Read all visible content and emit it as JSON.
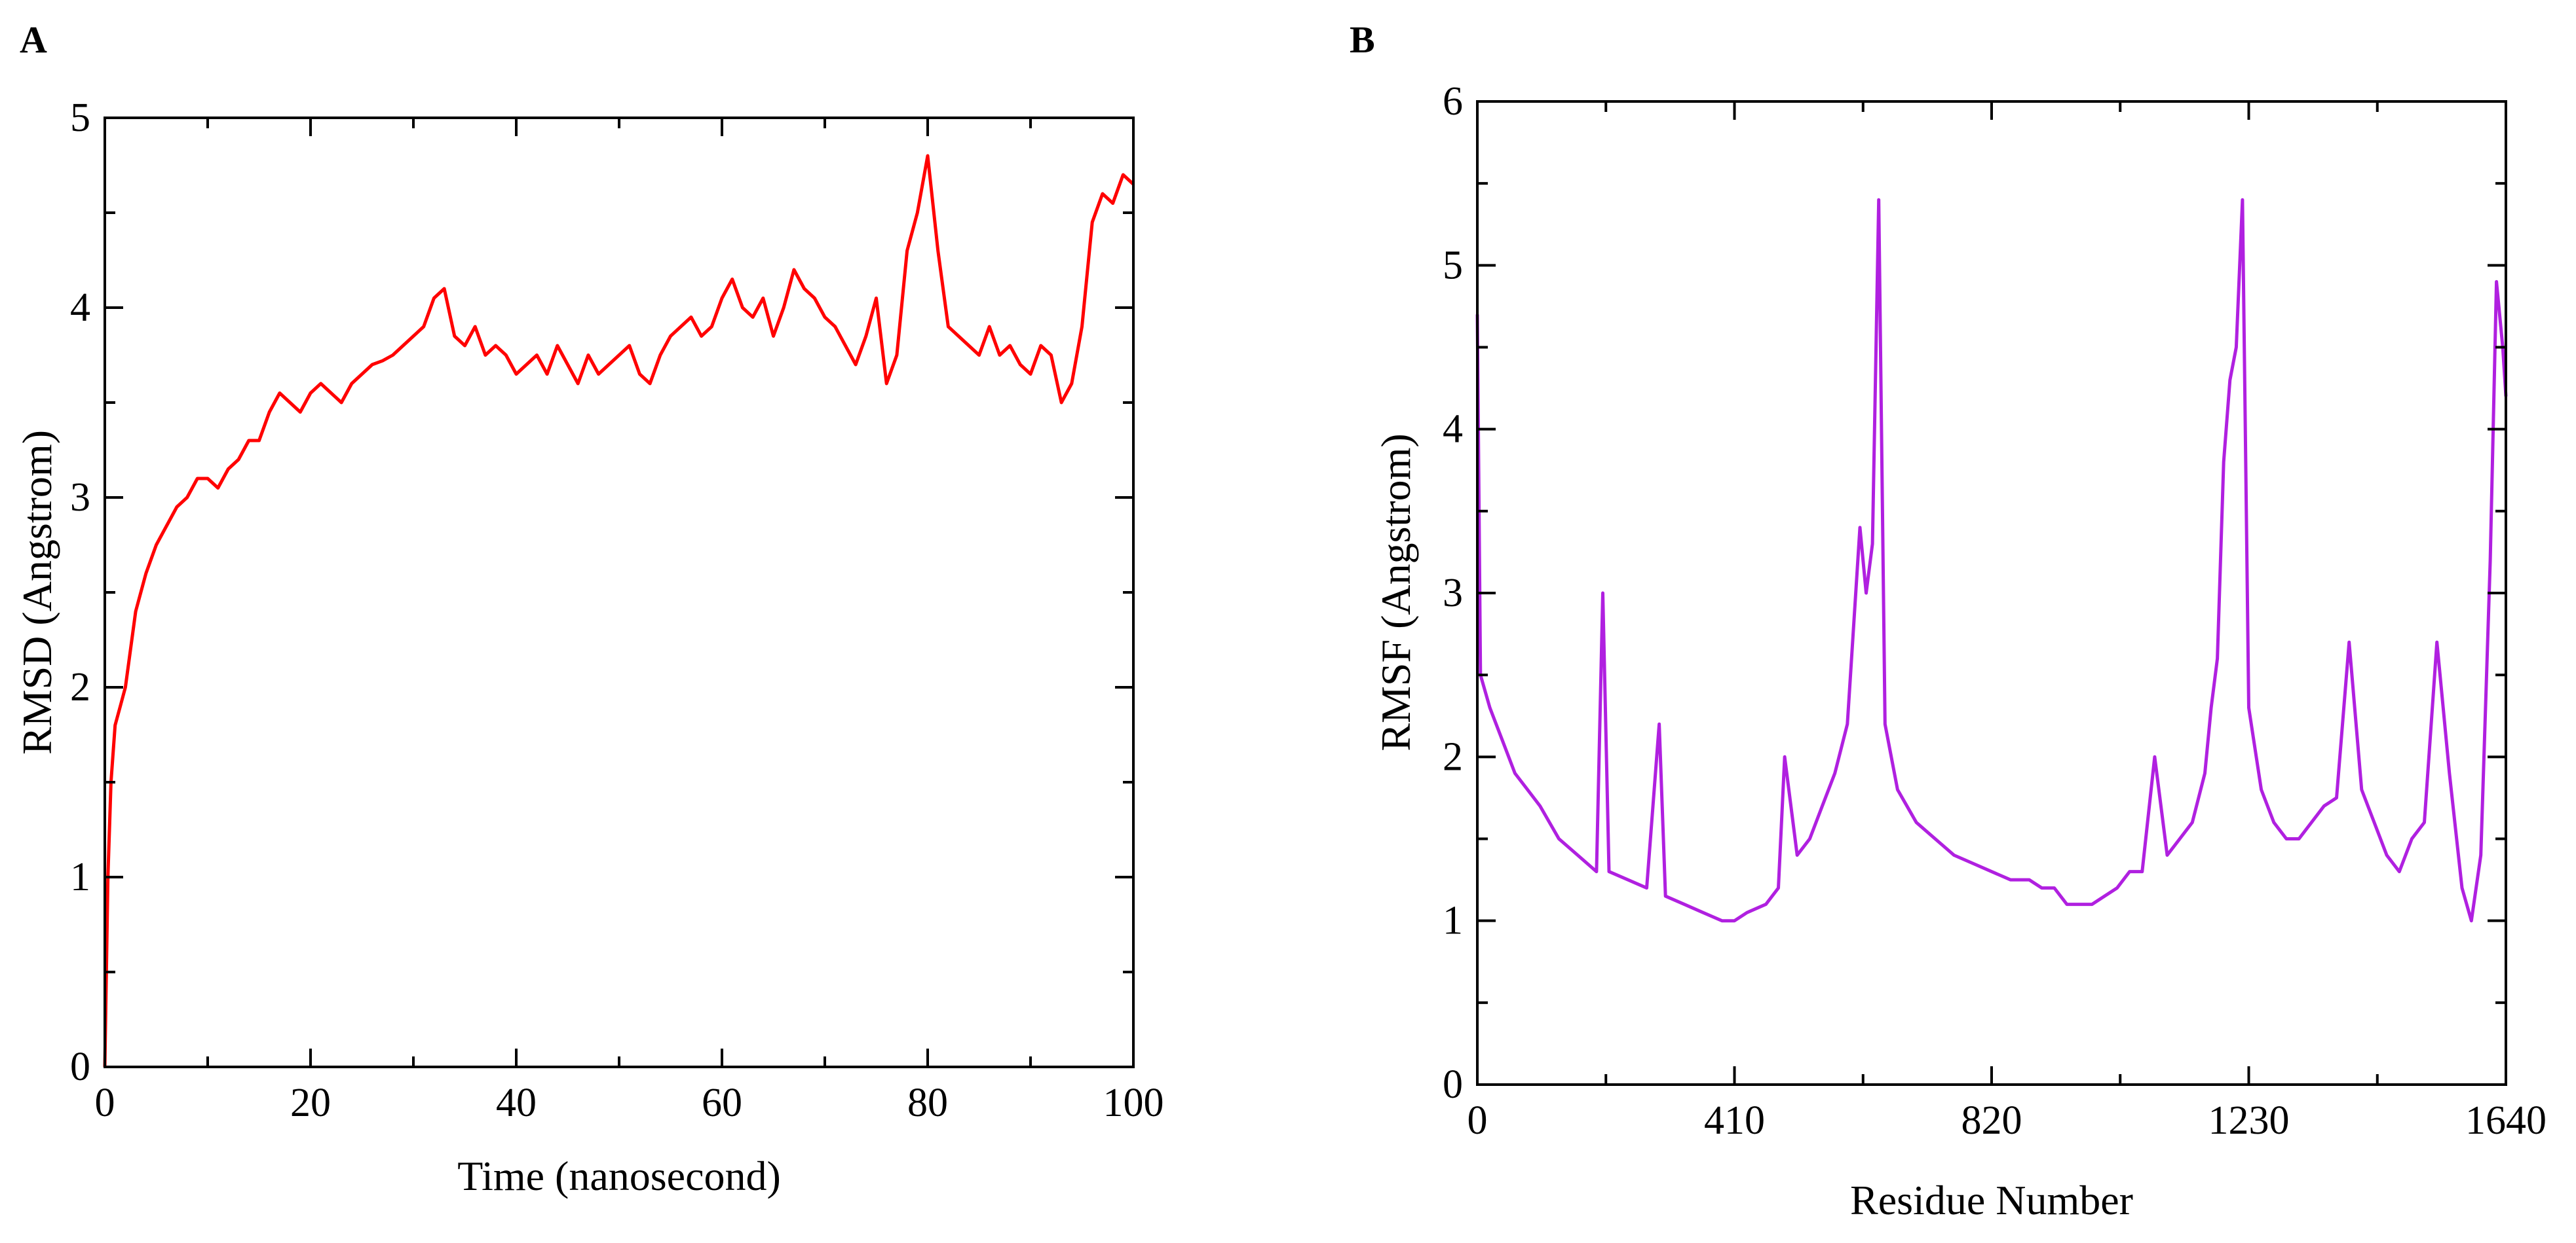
{
  "chart_data": [
    {
      "panel": "A",
      "type": "line",
      "title": "",
      "xlabel": "Time (nanosecond)",
      "ylabel": "RMSD (Angstrom)",
      "xlim": [
        0,
        100
      ],
      "ylim": [
        0,
        5
      ],
      "xticks": [
        0,
        20,
        40,
        60,
        80,
        100
      ],
      "yticks": [
        0,
        1,
        2,
        3,
        4,
        5
      ],
      "color": "#ff0000",
      "series": [
        {
          "name": "RMSD",
          "x": [
            0,
            0.3,
            0.6,
            1,
            1.5,
            2,
            3,
            4,
            5,
            6,
            7,
            8,
            9,
            10,
            11,
            12,
            13,
            14,
            15,
            16,
            17,
            18,
            19,
            20,
            21,
            22,
            23,
            24,
            25,
            26,
            27,
            28,
            29,
            30,
            31,
            32,
            33,
            34,
            35,
            36,
            37,
            38,
            39,
            40,
            41,
            42,
            43,
            44,
            45,
            46,
            47,
            48,
            49,
            50,
            51,
            52,
            53,
            54,
            55,
            56,
            57,
            58,
            59,
            60,
            61,
            62,
            63,
            64,
            65,
            66,
            67,
            68,
            69,
            70,
            71,
            72,
            73,
            74,
            75,
            76,
            77,
            78,
            79,
            80,
            81,
            82,
            83,
            84,
            85,
            86,
            87,
            88,
            89,
            90,
            91,
            92,
            93,
            94,
            95,
            96,
            97,
            98,
            99,
            100
          ],
          "y": [
            0.0,
            1.0,
            1.5,
            1.8,
            1.9,
            2.0,
            2.4,
            2.6,
            2.75,
            2.85,
            2.95,
            3.0,
            3.1,
            3.1,
            3.05,
            3.15,
            3.2,
            3.3,
            3.3,
            3.45,
            3.55,
            3.5,
            3.45,
            3.55,
            3.6,
            3.55,
            3.5,
            3.6,
            3.65,
            3.7,
            3.72,
            3.75,
            3.8,
            3.85,
            3.9,
            4.05,
            4.1,
            3.85,
            3.8,
            3.9,
            3.75,
            3.8,
            3.75,
            3.65,
            3.7,
            3.75,
            3.65,
            3.8,
            3.7,
            3.6,
            3.75,
            3.65,
            3.7,
            3.75,
            3.8,
            3.65,
            3.6,
            3.75,
            3.85,
            3.9,
            3.95,
            3.85,
            3.9,
            4.05,
            4.15,
            4.0,
            3.95,
            4.05,
            3.85,
            4.0,
            4.2,
            4.1,
            4.05,
            3.95,
            3.9,
            3.8,
            3.7,
            3.85,
            4.05,
            3.6,
            3.75,
            4.3,
            4.5,
            4.8,
            4.3,
            3.9,
            3.85,
            3.8,
            3.75,
            3.9,
            3.75,
            3.8,
            3.7,
            3.65,
            3.8,
            3.75,
            3.5,
            3.6,
            3.9,
            4.45,
            4.6,
            4.55,
            4.7,
            4.65
          ]
        }
      ]
    },
    {
      "panel": "B",
      "type": "line",
      "title": "",
      "xlabel": "Residue Number",
      "ylabel": "RMSF (Angstrom)",
      "xlim": [
        0,
        1640
      ],
      "ylim": [
        0,
        6
      ],
      "xticks": [
        0,
        410,
        820,
        1230,
        1640
      ],
      "yticks": [
        0,
        1,
        2,
        3,
        4,
        5,
        6
      ],
      "color": "#b020e0",
      "series": [
        {
          "name": "RMSF",
          "x": [
            0,
            5,
            20,
            40,
            60,
            80,
            100,
            130,
            160,
            190,
            200,
            210,
            240,
            270,
            290,
            300,
            330,
            360,
            390,
            410,
            430,
            460,
            480,
            490,
            510,
            530,
            550,
            570,
            590,
            600,
            610,
            620,
            630,
            640,
            650,
            670,
            700,
            730,
            760,
            790,
            820,
            850,
            880,
            900,
            920,
            940,
            960,
            980,
            1000,
            1020,
            1040,
            1060,
            1080,
            1100,
            1120,
            1140,
            1160,
            1170,
            1180,
            1190,
            1200,
            1210,
            1220,
            1230,
            1250,
            1270,
            1290,
            1310,
            1330,
            1350,
            1370,
            1390,
            1410,
            1430,
            1450,
            1470,
            1490,
            1510,
            1530,
            1550,
            1570,
            1585,
            1600,
            1615,
            1625,
            1635,
            1640
          ],
          "y": [
            4.7,
            2.5,
            2.3,
            2.1,
            1.9,
            1.8,
            1.7,
            1.5,
            1.4,
            1.3,
            3.0,
            1.3,
            1.25,
            1.2,
            2.2,
            1.15,
            1.1,
            1.05,
            1.0,
            1.0,
            1.05,
            1.1,
            1.2,
            2.0,
            1.4,
            1.5,
            1.7,
            1.9,
            2.2,
            2.8,
            3.4,
            3.0,
            3.3,
            5.4,
            2.2,
            1.8,
            1.6,
            1.5,
            1.4,
            1.35,
            1.3,
            1.25,
            1.25,
            1.2,
            1.2,
            1.1,
            1.1,
            1.1,
            1.15,
            1.2,
            1.3,
            1.3,
            2.0,
            1.4,
            1.5,
            1.6,
            1.9,
            2.3,
            2.6,
            3.8,
            4.3,
            4.5,
            5.4,
            2.3,
            1.8,
            1.6,
            1.5,
            1.5,
            1.6,
            1.7,
            1.75,
            2.7,
            1.8,
            1.6,
            1.4,
            1.3,
            1.5,
            1.6,
            2.7,
            1.9,
            1.2,
            1.0,
            1.4,
            3.2,
            4.9,
            4.5,
            4.2
          ]
        }
      ]
    }
  ],
  "panels": {
    "a": {
      "label": "A"
    },
    "b": {
      "label": "B"
    }
  }
}
